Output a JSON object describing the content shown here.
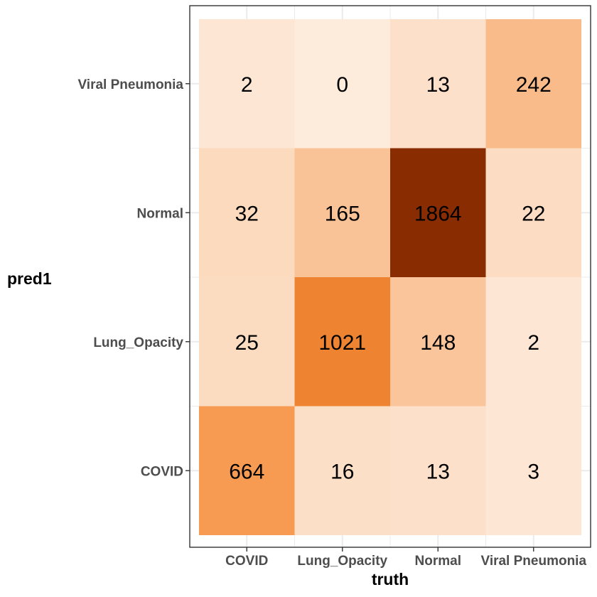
{
  "chart_data": {
    "type": "heatmap",
    "title": "",
    "xlabel": "truth",
    "ylabel": "pred1",
    "x_categories": [
      "COVID",
      "Lung_Opacity",
      "Normal",
      "Viral Pneumonia"
    ],
    "y_categories": [
      "COVID",
      "Lung_Opacity",
      "Normal",
      "Viral Pneumonia"
    ],
    "cells": [
      {
        "truth": "COVID",
        "pred1": "Viral Pneumonia",
        "value": 2
      },
      {
        "truth": "Lung_Opacity",
        "pred1": "Viral Pneumonia",
        "value": 0
      },
      {
        "truth": "Normal",
        "pred1": "Viral Pneumonia",
        "value": 13
      },
      {
        "truth": "Viral Pneumonia",
        "pred1": "Viral Pneumonia",
        "value": 242
      },
      {
        "truth": "COVID",
        "pred1": "Normal",
        "value": 32
      },
      {
        "truth": "Lung_Opacity",
        "pred1": "Normal",
        "value": 165
      },
      {
        "truth": "Normal",
        "pred1": "Normal",
        "value": 1864
      },
      {
        "truth": "Viral Pneumonia",
        "pred1": "Normal",
        "value": 22
      },
      {
        "truth": "COVID",
        "pred1": "Lung_Opacity",
        "value": 25
      },
      {
        "truth": "Lung_Opacity",
        "pred1": "Lung_Opacity",
        "value": 1021
      },
      {
        "truth": "Normal",
        "pred1": "Lung_Opacity",
        "value": 148
      },
      {
        "truth": "Viral Pneumonia",
        "pred1": "Lung_Opacity",
        "value": 2
      },
      {
        "truth": "COVID",
        "pred1": "COVID",
        "value": 664
      },
      {
        "truth": "Lung_Opacity",
        "pred1": "COVID",
        "value": 16
      },
      {
        "truth": "Normal",
        "pred1": "COVID",
        "value": 13
      },
      {
        "truth": "Viral Pneumonia",
        "pred1": "COVID",
        "value": 3
      }
    ],
    "color_scale": {
      "low": "#fdebdc",
      "mid": "#f68b36",
      "high": "#8a2c02"
    },
    "grid": true,
    "legend": "none"
  }
}
